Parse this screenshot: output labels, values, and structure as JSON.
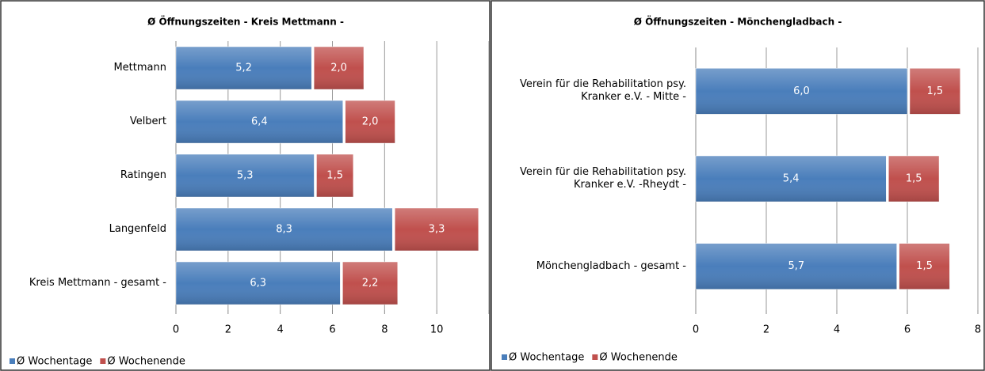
{
  "chart_data": [
    {
      "type": "stacked-barh",
      "title": "Ø Öffnungszeiten - Kreis Mettmann -",
      "categories": [
        "Mettmann",
        "Velbert",
        "Ratingen",
        "Langenfeld",
        "Kreis Mettmann - gesamt -"
      ],
      "series": [
        {
          "name": "Ø Wochentage",
          "color": "#4a7ebb",
          "values": [
            5.2,
            6.4,
            5.3,
            8.3,
            6.3
          ],
          "value_labels": [
            "5,2",
            "6,4",
            "5,3",
            "8,3",
            "6,3"
          ]
        },
        {
          "name": "Ø Wochenende",
          "color": "#c0504d",
          "values": [
            2.0,
            2.0,
            1.5,
            3.3,
            2.2
          ],
          "value_labels": [
            "2,0",
            "2,0",
            "1,5",
            "3,3",
            "2,2"
          ]
        }
      ],
      "xlim": [
        0,
        12
      ],
      "xticks": [
        0,
        2,
        4,
        6,
        8,
        10,
        12
      ],
      "grid": true,
      "legend": "bottom-left"
    },
    {
      "type": "stacked-barh",
      "title": "Ø Öffnungszeiten - Mönchengladbach -",
      "categories": [
        "Verein für die Rehabilitation psy.\nKranker e.V. - Mitte -",
        "Verein für die Rehabilitation psy.\nKranker e.V. -Rheydt -",
        "Mönchengladbach - gesamt -"
      ],
      "series": [
        {
          "name": "Ø Wochentage",
          "color": "#4a7ebb",
          "values": [
            6.0,
            5.4,
            5.7
          ],
          "value_labels": [
            "6,0",
            "5,4",
            "5,7"
          ]
        },
        {
          "name": "Ø Wochenende",
          "color": "#c0504d",
          "values": [
            1.5,
            1.5,
            1.5
          ],
          "value_labels": [
            "1,5",
            "1,5",
            "1,5"
          ]
        }
      ],
      "xlim": [
        0,
        8
      ],
      "xticks": [
        0,
        2,
        4,
        6,
        8
      ],
      "grid": true,
      "legend": "bottom-left"
    }
  ]
}
